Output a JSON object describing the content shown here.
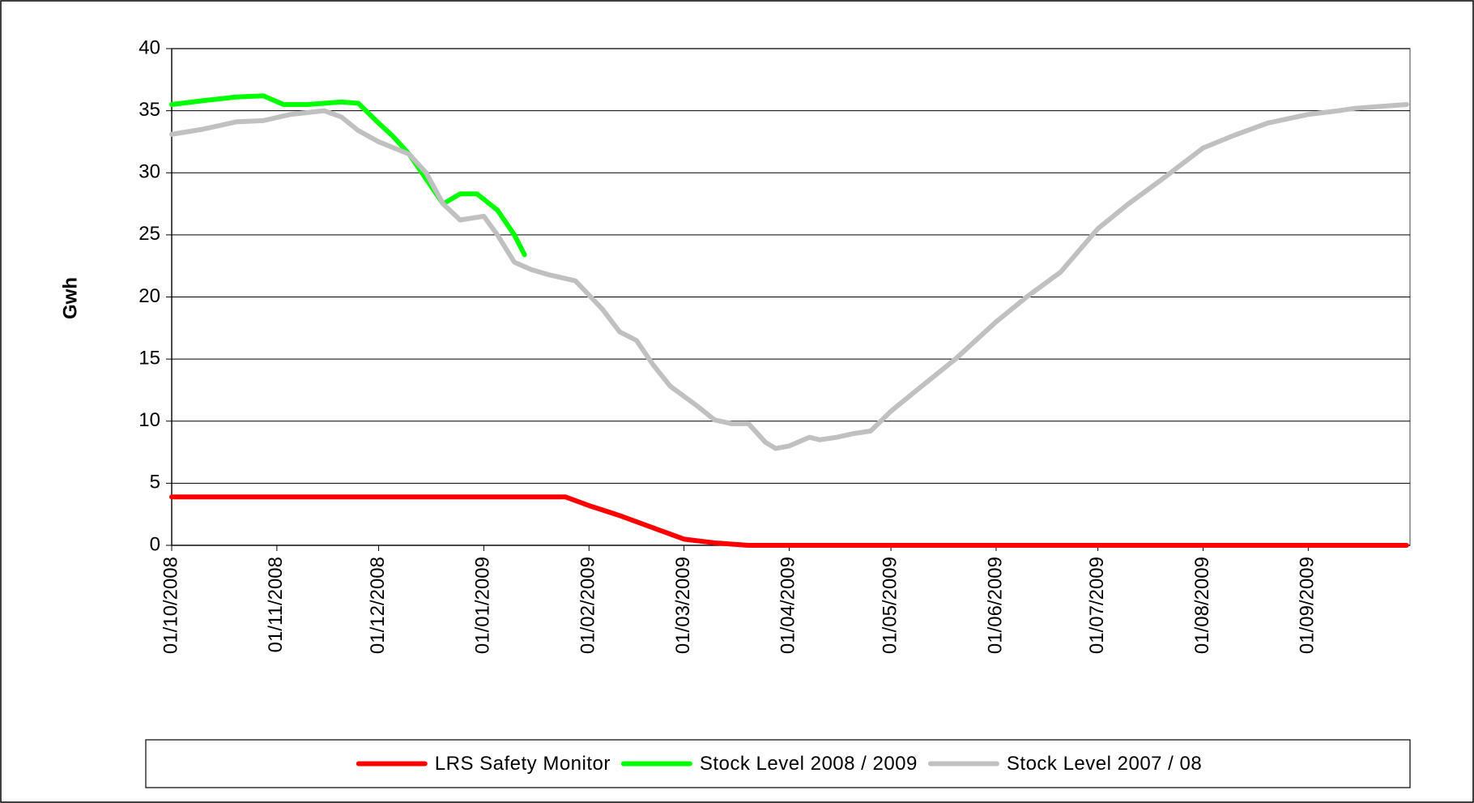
{
  "chart_data": {
    "type": "line",
    "y_label": "Gwh",
    "ylim": [
      0,
      40
    ],
    "yticks": [
      0,
      5,
      10,
      15,
      20,
      25,
      30,
      35,
      40
    ],
    "xlim": [
      "2008-10-01",
      "2009-10-01"
    ],
    "xticks": [
      {
        "value": "2008-10-01",
        "label": "01/10/2008"
      },
      {
        "value": "2008-11-01",
        "label": "01/11/2008"
      },
      {
        "value": "2008-12-01",
        "label": "01/12/2008"
      },
      {
        "value": "2009-01-01",
        "label": "01/01/2009"
      },
      {
        "value": "2009-02-01",
        "label": "01/02/2009"
      },
      {
        "value": "2009-03-01",
        "label": "01/03/2009"
      },
      {
        "value": "2009-04-01",
        "label": "01/04/2009"
      },
      {
        "value": "2009-05-01",
        "label": "01/05/2009"
      },
      {
        "value": "2009-06-01",
        "label": "01/06/2009"
      },
      {
        "value": "2009-07-01",
        "label": "01/07/2009"
      },
      {
        "value": "2009-08-01",
        "label": "01/08/2009"
      },
      {
        "value": "2009-09-01",
        "label": "01/09/2009"
      }
    ],
    "grid": true,
    "legend": "bottom",
    "series": [
      {
        "name": "LRS Safety Monitor",
        "color": "#ff0000",
        "x": [
          "2008-10-01",
          "2009-01-25",
          "2009-02-01",
          "2009-02-10",
          "2009-02-20",
          "2009-03-01",
          "2009-03-10",
          "2009-03-15",
          "2009-03-20",
          "2009-09-30"
        ],
        "values": [
          3.9,
          3.9,
          3.2,
          2.4,
          1.4,
          0.5,
          0.2,
          0.1,
          0,
          0
        ]
      },
      {
        "name": "Stock Level 2008 / 2009",
        "color": "#00ff00",
        "x": [
          "2008-10-01",
          "2008-10-10",
          "2008-10-20",
          "2008-10-28",
          "2008-11-03",
          "2008-11-10",
          "2008-11-20",
          "2008-11-25",
          "2008-12-01",
          "2008-12-05",
          "2008-12-10",
          "2008-12-15",
          "2008-12-20",
          "2008-12-25",
          "2008-12-30",
          "2009-01-05",
          "2009-01-10",
          "2009-01-13"
        ],
        "values": [
          35.5,
          35.8,
          36.1,
          36.2,
          35.5,
          35.5,
          35.7,
          35.6,
          34.0,
          33.0,
          31.5,
          29.5,
          27.5,
          28.3,
          28.3,
          27.0,
          25.0,
          23.4
        ]
      },
      {
        "name": "Stock Level 2007 / 08",
        "color": "#c0c0c0",
        "x": [
          "2008-10-01",
          "2008-10-10",
          "2008-10-20",
          "2008-10-28",
          "2008-11-05",
          "2008-11-15",
          "2008-11-20",
          "2008-11-25",
          "2008-12-01",
          "2008-12-10",
          "2008-12-15",
          "2008-12-20",
          "2008-12-25",
          "2009-01-01",
          "2009-01-05",
          "2009-01-10",
          "2009-01-15",
          "2009-01-20",
          "2009-01-28",
          "2009-02-05",
          "2009-02-10",
          "2009-02-15",
          "2009-02-20",
          "2009-02-25",
          "2009-03-01",
          "2009-03-05",
          "2009-03-10",
          "2009-03-15",
          "2009-03-20",
          "2009-03-25",
          "2009-03-28",
          "2009-04-01",
          "2009-04-07",
          "2009-04-10",
          "2009-04-15",
          "2009-04-20",
          "2009-04-25",
          "2009-05-01",
          "2009-05-10",
          "2009-05-20",
          "2009-06-01",
          "2009-06-10",
          "2009-06-20",
          "2009-07-01",
          "2009-07-10",
          "2009-07-20",
          "2009-08-01",
          "2009-08-10",
          "2009-08-20",
          "2009-09-01",
          "2009-09-10",
          "2009-09-15",
          "2009-09-30"
        ],
        "values": [
          33.1,
          33.5,
          34.1,
          34.2,
          34.7,
          35.0,
          34.5,
          33.4,
          32.5,
          31.5,
          30.0,
          27.5,
          26.2,
          26.5,
          25.0,
          22.8,
          22.2,
          21.8,
          21.3,
          19.0,
          17.2,
          16.5,
          14.5,
          12.8,
          12.0,
          11.2,
          10.1,
          9.8,
          9.8,
          8.3,
          7.8,
          8.0,
          8.7,
          8.5,
          8.7,
          9.0,
          9.2,
          10.8,
          12.8,
          15.0,
          18.0,
          20.0,
          22.0,
          25.5,
          27.5,
          29.5,
          32.0,
          33.0,
          34.0,
          34.7,
          35.0,
          35.2,
          35.5
        ]
      }
    ]
  }
}
